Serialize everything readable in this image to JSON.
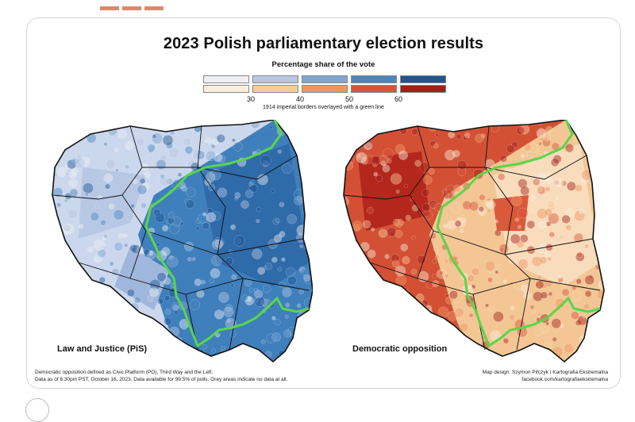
{
  "title": "2023 Polish parliamentary election results",
  "legend": {
    "title": "Percentage share of the vote",
    "ticks": [
      "30",
      "40",
      "50",
      "60"
    ],
    "blue_colors": [
      "#eef0f6",
      "#b8c6e2",
      "#7fa6d1",
      "#4a86bf",
      "#1e5592"
    ],
    "red_colors": [
      "#fbeedd",
      "#f5cd98",
      "#ef9564",
      "#d9523a",
      "#a51e1a"
    ],
    "note": "1914 imperial borders overlayed with a green line"
  },
  "maps": [
    {
      "label": "Law and Justice (PiS)",
      "palette": "blue"
    },
    {
      "label": "Democratic opposition",
      "palette": "red"
    }
  ],
  "colors": {
    "border_line": "#5ad64a",
    "outline": "#111111"
  },
  "footer": {
    "left_line1": "Democratic opposition defined as Civic Platform (PO), Third Way and the Left.",
    "left_line2": "Data as of 6:30pm PST,  October 16, 2023. Data available for 99.5% of polls.  Grey areas indicate no data at all.",
    "right_line1": "Map design: Szymon Pifczyk I Kartografia Ekstremalna",
    "right_line2": "facebook.com/kartografiaekstremalna"
  }
}
